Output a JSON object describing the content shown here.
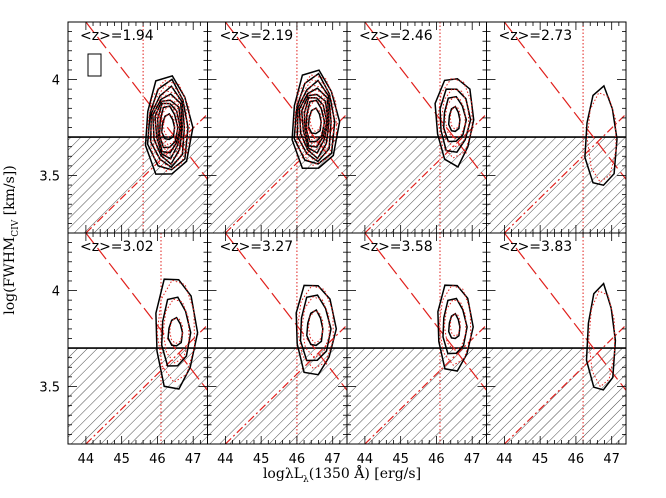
{
  "figure": {
    "xlabel": "logλL",
    "xlabel_sub": "λ",
    "xlabel_rest": "(1350 Å) [erg/s]",
    "ylabel": "log(FWHM",
    "ylabel_sub": "CIV",
    "ylabel_rest": " [km/s])"
  },
  "chart_data": {
    "type": "grid of contour plots",
    "rows": 2,
    "columns": 4,
    "xlim": [
      43.5,
      47.4
    ],
    "ylim": [
      3.2,
      4.3
    ],
    "xticks": [
      44,
      45,
      46,
      47
    ],
    "yticks": [
      3.5,
      4
    ],
    "hatched_region_below_y": 3.7,
    "diagonal_lines": [
      {
        "style": "red long-dash",
        "x1": 44.0,
        "y1": 4.3,
        "x2": 47.4,
        "y2": 3.48
      },
      {
        "style": "red dash-dot",
        "x1": 44.0,
        "y1": 3.2,
        "x2": 47.4,
        "y2": 3.82
      }
    ],
    "panels": [
      {
        "z_label": "<z>=1.94",
        "vline_x": 45.6,
        "center": [
          46.3,
          3.75
        ],
        "levels": [
          [
            0.4,
            0.36
          ],
          [
            0.57,
            0.6
          ],
          [
            0.7,
            0.72
          ],
          [
            0.82,
            0.83
          ],
          [
            0.95,
            0.96
          ],
          [
            1.1,
            1.1
          ],
          [
            1.27,
            1.26
          ],
          [
            1.47,
            1.42
          ]
        ],
        "level_count": 8,
        "has_box_symbol": true
      },
      {
        "z_label": "<z>=2.19",
        "vline_x": 46.0,
        "center": [
          46.5,
          3.78
        ],
        "levels": [
          [
            0.4,
            0.36
          ],
          [
            0.57,
            0.6
          ],
          [
            0.7,
            0.72
          ],
          [
            0.82,
            0.83
          ],
          [
            0.95,
            0.96
          ],
          [
            1.1,
            1.1
          ],
          [
            1.27,
            1.26
          ],
          [
            1.47,
            1.42
          ]
        ],
        "level_count": 8,
        "has_box_symbol": false
      },
      {
        "z_label": "<z>=2.46",
        "vline_x": 46.1,
        "center": [
          46.5,
          3.79
        ],
        "levels": [
          [
            0.35,
            0.35
          ],
          [
            0.7,
            0.65
          ],
          [
            0.95,
            0.92
          ],
          [
            1.2,
            1.25
          ]
        ],
        "level_count": 4,
        "has_box_symbol": false
      },
      {
        "z_label": "<z>=2.73",
        "vline_x": 46.2,
        "center": [
          46.7,
          3.69
        ],
        "levels": [
          [
            1.0,
            1.4
          ]
        ],
        "level_count": 1,
        "has_box_symbol": false
      },
      {
        "z_label": "<z>=3.02",
        "vline_x": 46.1,
        "center": [
          46.5,
          3.78
        ],
        "levels": [
          [
            0.45,
            0.4
          ],
          [
            0.9,
            1.0
          ],
          [
            1.3,
            1.6
          ]
        ],
        "level_count": 3,
        "has_box_symbol": false
      },
      {
        "z_label": "<z>=3.27",
        "vline_x": 46.0,
        "center": [
          46.5,
          3.8
        ],
        "levels": [
          [
            0.5,
            0.5
          ],
          [
            0.95,
            0.95
          ],
          [
            1.25,
            1.3
          ]
        ],
        "level_count": 3,
        "has_box_symbol": false
      },
      {
        "z_label": "<z>=3.58",
        "vline_x": 46.1,
        "center": [
          46.5,
          3.81
        ],
        "levels": [
          [
            0.35,
            0.35
          ],
          [
            0.75,
            0.8
          ],
          [
            1.1,
            1.25
          ]
        ],
        "level_count": 3,
        "has_box_symbol": false
      },
      {
        "z_label": "<z>=3.83",
        "vline_x": 46.2,
        "center": [
          46.7,
          3.74
        ],
        "levels": [
          [
            0.9,
            1.5
          ]
        ],
        "level_count": 1,
        "has_box_symbol": false
      }
    ]
  }
}
